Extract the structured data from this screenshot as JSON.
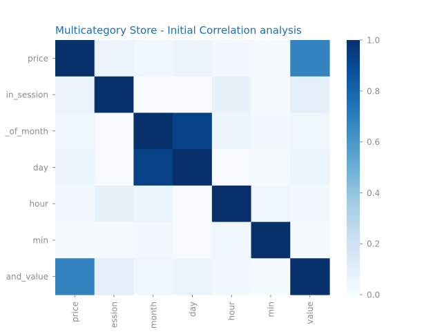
{
  "chart_data": {
    "type": "heatmap",
    "title": "Multicategory Store - Initial Correlation analysis",
    "y_labels": [
      "price",
      "in_session",
      "_of_month",
      "day",
      "hour",
      "min",
      "and_value"
    ],
    "x_labels": [
      "price",
      "ession",
      "month",
      "day",
      "hour",
      "min",
      "value"
    ],
    "values": [
      [
        1.0,
        0.06,
        0.04,
        0.05,
        0.02,
        0.01,
        0.68
      ],
      [
        0.06,
        1.0,
        0.0,
        0.0,
        0.07,
        0.01,
        0.09
      ],
      [
        0.04,
        0.0,
        1.0,
        0.93,
        0.05,
        0.02,
        0.04
      ],
      [
        0.05,
        0.0,
        0.93,
        1.0,
        0.0,
        0.01,
        0.05
      ],
      [
        0.02,
        0.07,
        0.05,
        0.0,
        1.0,
        0.04,
        0.02
      ],
      [
        0.01,
        0.01,
        0.02,
        0.0,
        0.04,
        1.0,
        0.01
      ],
      [
        0.68,
        0.09,
        0.04,
        0.05,
        0.02,
        0.01,
        1.0
      ]
    ],
    "colormap": "Blues",
    "colorbar": {
      "range": [
        0.0,
        1.0
      ],
      "ticks": [
        0.0,
        0.2,
        0.4,
        0.6,
        0.8,
        1.0
      ],
      "tick_labels": [
        "0.0",
        "0.2",
        "0.4",
        "0.6",
        "0.8",
        "1.0"
      ]
    },
    "grid": false
  },
  "colors": {
    "title": "#1f6fb2",
    "tick_label": "#8c8c8c",
    "tick_line": "#8c8c8c"
  }
}
